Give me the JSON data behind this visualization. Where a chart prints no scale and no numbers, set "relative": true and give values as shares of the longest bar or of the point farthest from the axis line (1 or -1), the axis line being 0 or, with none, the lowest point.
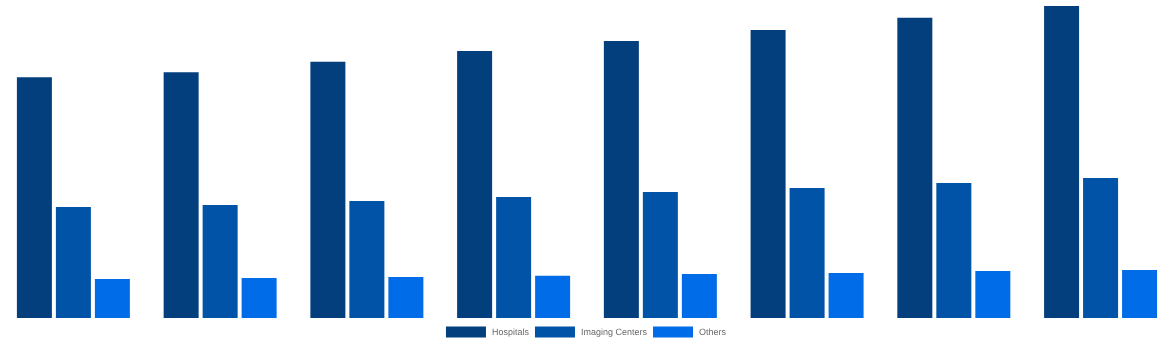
{
  "chart_data": {
    "type": "bar",
    "relative": true,
    "legend": "bottom",
    "categories": [
      null,
      null,
      null,
      null,
      null,
      null,
      null,
      null
    ],
    "series": [
      {
        "name": "Hospitals",
        "color": "#033f7c",
        "values": [
          0.772,
          0.788,
          0.821,
          0.856,
          0.888,
          0.923,
          0.962,
          1
        ]
      },
      {
        "name": "Imaging Centers",
        "color": "#0053a6",
        "values": [
          0.356,
          0.362,
          0.375,
          0.388,
          0.404,
          0.417,
          0.433,
          0.449
        ]
      },
      {
        "name": "Others",
        "color": "#006ce8",
        "values": [
          0.125,
          0.128,
          0.131,
          0.135,
          0.141,
          0.144,
          0.151,
          0.154
        ]
      }
    ]
  }
}
